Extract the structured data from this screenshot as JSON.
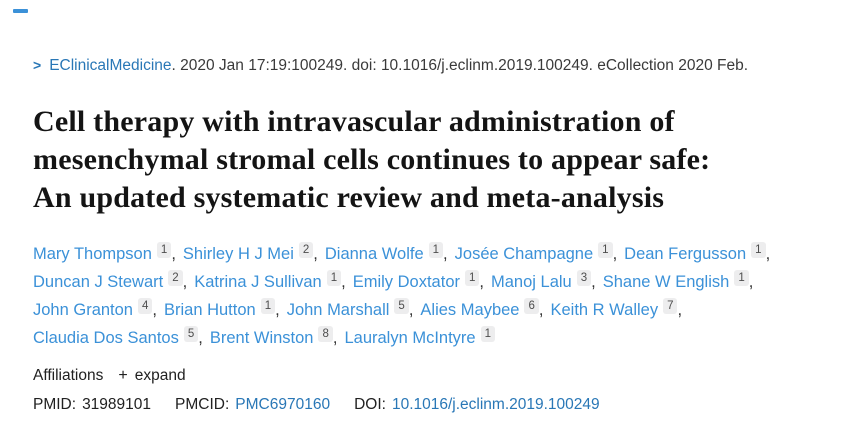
{
  "colors": {
    "link_blue": "#2977b6",
    "author_blue": "#3b91d8",
    "sup_bg": "#ededee",
    "text_dark": "#212121"
  },
  "citation": {
    "chevron_icon": ">",
    "journal_link": "EClinicalMedicine",
    "text_after_journal": ". 2020 Jan 17:19:100249. doi: 10.1016/j.eclinm.2019.100249. eCollection 2020 Feb."
  },
  "title_lines": [
    "Cell therapy with intravascular administration of",
    "mesenchymal stromal cells continues to appear safe:",
    "An updated systematic review and meta-analysis"
  ],
  "author_lines": [
    [
      {
        "name": "Mary Thompson",
        "sup": "1"
      },
      {
        "name": "Shirley H J Mei",
        "sup": "2"
      },
      {
        "name": "Dianna Wolfe",
        "sup": "1"
      },
      {
        "name": "Josée Champagne",
        "sup": "1"
      },
      {
        "name": "Dean Fergusson",
        "sup": "1"
      }
    ],
    [
      {
        "name": "Duncan J Stewart",
        "sup": "2"
      },
      {
        "name": "Katrina J Sullivan",
        "sup": "1"
      },
      {
        "name": "Emily Doxtator",
        "sup": "1"
      },
      {
        "name": "Manoj Lalu",
        "sup": "3"
      },
      {
        "name": "Shane W English",
        "sup": "1"
      }
    ],
    [
      {
        "name": "John Granton",
        "sup": "4"
      },
      {
        "name": "Brian Hutton",
        "sup": "1"
      },
      {
        "name": "John Marshall",
        "sup": "5"
      },
      {
        "name": "Alies Maybee",
        "sup": "6"
      },
      {
        "name": "Keith R Walley",
        "sup": "7"
      }
    ],
    [
      {
        "name": "Claudia Dos Santos",
        "sup": "5"
      },
      {
        "name": "Brent Winston",
        "sup": "8"
      },
      {
        "name": "Lauralyn McIntyre",
        "sup": "1"
      }
    ]
  ],
  "affiliations": {
    "label": "Affiliations",
    "expand_icon": "+",
    "expand_label": "expand"
  },
  "identifiers": {
    "pmid_label": "PMID:",
    "pmid_value": "31989101",
    "pmcid_label": "PMCID:",
    "pmcid_value": "PMC6970160",
    "doi_label": "DOI:",
    "doi_value": "10.1016/j.eclinm.2019.100249"
  }
}
